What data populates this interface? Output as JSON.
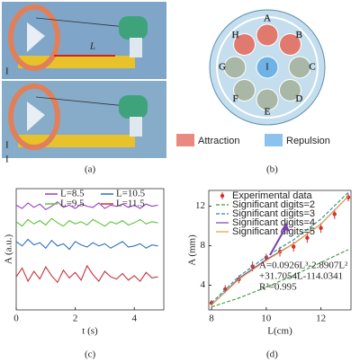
{
  "panels": [
    "(a)",
    "(b)",
    "(c)",
    "(d)"
  ],
  "photo": {
    "length_label": "L",
    "marks": [
      "I",
      "I",
      "I"
    ]
  },
  "diagram": {
    "magnets": [
      {
        "label": "A",
        "color": "#e07a6e"
      },
      {
        "label": "B",
        "color": "#e07a6e"
      },
      {
        "label": "C",
        "color": "#a9b8a6"
      },
      {
        "label": "D",
        "color": "#a9b8a6"
      },
      {
        "label": "E",
        "color": "#a9b8a6"
      },
      {
        "label": "F",
        "color": "#a9b8a6"
      },
      {
        "label": "G",
        "color": "#a9b8a6"
      },
      {
        "label": "H",
        "color": "#e07a6e"
      }
    ],
    "center": {
      "label": "I",
      "color": "#6fb3e6"
    },
    "legend": [
      {
        "name": "Attraction",
        "color": "#e88a80"
      },
      {
        "name": "Repulsion",
        "color": "#8cc3ee"
      }
    ]
  },
  "chart_data": [
    {
      "type": "line",
      "x_label": "t (s)",
      "y_label": "A (a.u.)",
      "x": [
        0,
        0.2,
        0.4,
        0.6,
        0.8,
        1.0,
        1.2,
        1.4,
        1.6,
        1.8,
        2.0,
        2.2,
        2.4,
        2.6,
        2.8,
        3.0,
        3.2,
        3.4,
        3.6,
        3.8,
        4.0,
        4.2,
        4.4,
        4.6,
        4.8
      ],
      "xlim": [
        0,
        5
      ],
      "xticks": [
        0,
        2,
        4
      ],
      "ylim": [
        0,
        11
      ],
      "series": [
        {
          "name": "L=8.5",
          "color": "#9b3fc4",
          "values": [
            9.5,
            9.2,
            9.7,
            9.3,
            9.6,
            9.1,
            9.4,
            9.8,
            9.3,
            9.5,
            9.2,
            9.6,
            9.4,
            9.3,
            9.7,
            9.2,
            9.5,
            9.4,
            9.6,
            9.3,
            9.5,
            9.2,
            9.6,
            9.4,
            9.5
          ]
        },
        {
          "name": "L=9.5",
          "color": "#5cc43a",
          "values": [
            8.0,
            7.6,
            8.2,
            7.8,
            8.1,
            7.7,
            8.3,
            7.9,
            7.6,
            8.1,
            7.8,
            8.0,
            7.7,
            8.2,
            7.9,
            7.6,
            8.0,
            7.8,
            8.1,
            7.7,
            7.9,
            8.2,
            7.8,
            8.0,
            7.9
          ]
        },
        {
          "name": "L=10.5",
          "color": "#2f6fc4",
          "values": [
            6.2,
            5.8,
            6.4,
            5.9,
            6.1,
            5.6,
            6.3,
            5.8,
            6.0,
            5.5,
            6.2,
            5.9,
            5.7,
            6.1,
            5.8,
            6.0,
            5.6,
            5.9,
            6.2,
            5.7,
            5.8,
            6.0,
            5.6,
            5.9,
            5.8
          ]
        },
        {
          "name": "L=11.5",
          "color": "#c8323a",
          "values": [
            3.0,
            3.8,
            2.6,
            3.5,
            2.8,
            3.9,
            3.1,
            2.5,
            3.6,
            2.9,
            3.4,
            2.7,
            4.0,
            3.2,
            2.6,
            3.5,
            3.0,
            2.8,
            3.3,
            2.7,
            3.1,
            2.6,
            3.4,
            2.9,
            3.0
          ]
        }
      ]
    },
    {
      "type": "line",
      "x_label": "L(cm)",
      "y_label": "A (mm)",
      "xlim": [
        7.9,
        13.1
      ],
      "xticks": [
        8,
        10,
        12
      ],
      "ylim": [
        1.5,
        13.6
      ],
      "yticks": [
        4,
        8,
        12
      ],
      "annotations": [
        "A=0.0926L³-2.8907L²",
        "+31.7054L-114.0341",
        "R²=0.995"
      ],
      "series": [
        {
          "name": "Experimental data",
          "color": "#d0312d",
          "x": [
            8.0,
            8.5,
            9.0,
            9.5,
            10.0,
            10.5,
            11.0,
            11.5,
            12.0,
            12.5,
            13.0
          ],
          "values": [
            2.2,
            3.6,
            4.6,
            5.9,
            6.8,
            7.4,
            7.9,
            8.8,
            9.8,
            11.2,
            12.9
          ],
          "errors": [
            0.3,
            0.4,
            0.4,
            0.5,
            0.4,
            0.5,
            0.5,
            0.5,
            0.5,
            0.5,
            0.4
          ]
        },
        {
          "name": "Significant digits=2",
          "color": "#3c9a3c",
          "linestyle": "dashed",
          "x": [
            8,
            9,
            10,
            11,
            12,
            13
          ],
          "values": [
            1.8,
            2.7,
            3.8,
            5.0,
            6.3,
            7.6
          ]
        },
        {
          "name": "Significant digits=3",
          "color": "#2a8c8c",
          "linestyle": "dashed",
          "x": [
            8,
            9,
            10,
            11,
            12,
            13
          ],
          "values": [
            2.2,
            4.9,
            6.9,
            8.6,
            10.7,
            13.4
          ]
        },
        {
          "name": "Significant digits=4",
          "color": "#7b3fb0",
          "linestyle": "solid",
          "x": [
            8,
            9,
            10,
            11,
            12,
            13
          ],
          "values": [
            2.0,
            4.7,
            6.6,
            8.2,
            10.2,
            13.0
          ]
        },
        {
          "name": "Significant digits=5",
          "color": "#e0a040",
          "linestyle": "solid",
          "x": [
            8,
            9,
            10,
            11,
            12,
            13
          ],
          "values": [
            2.0,
            4.6,
            6.5,
            8.2,
            10.2,
            13.0
          ]
        }
      ]
    }
  ]
}
